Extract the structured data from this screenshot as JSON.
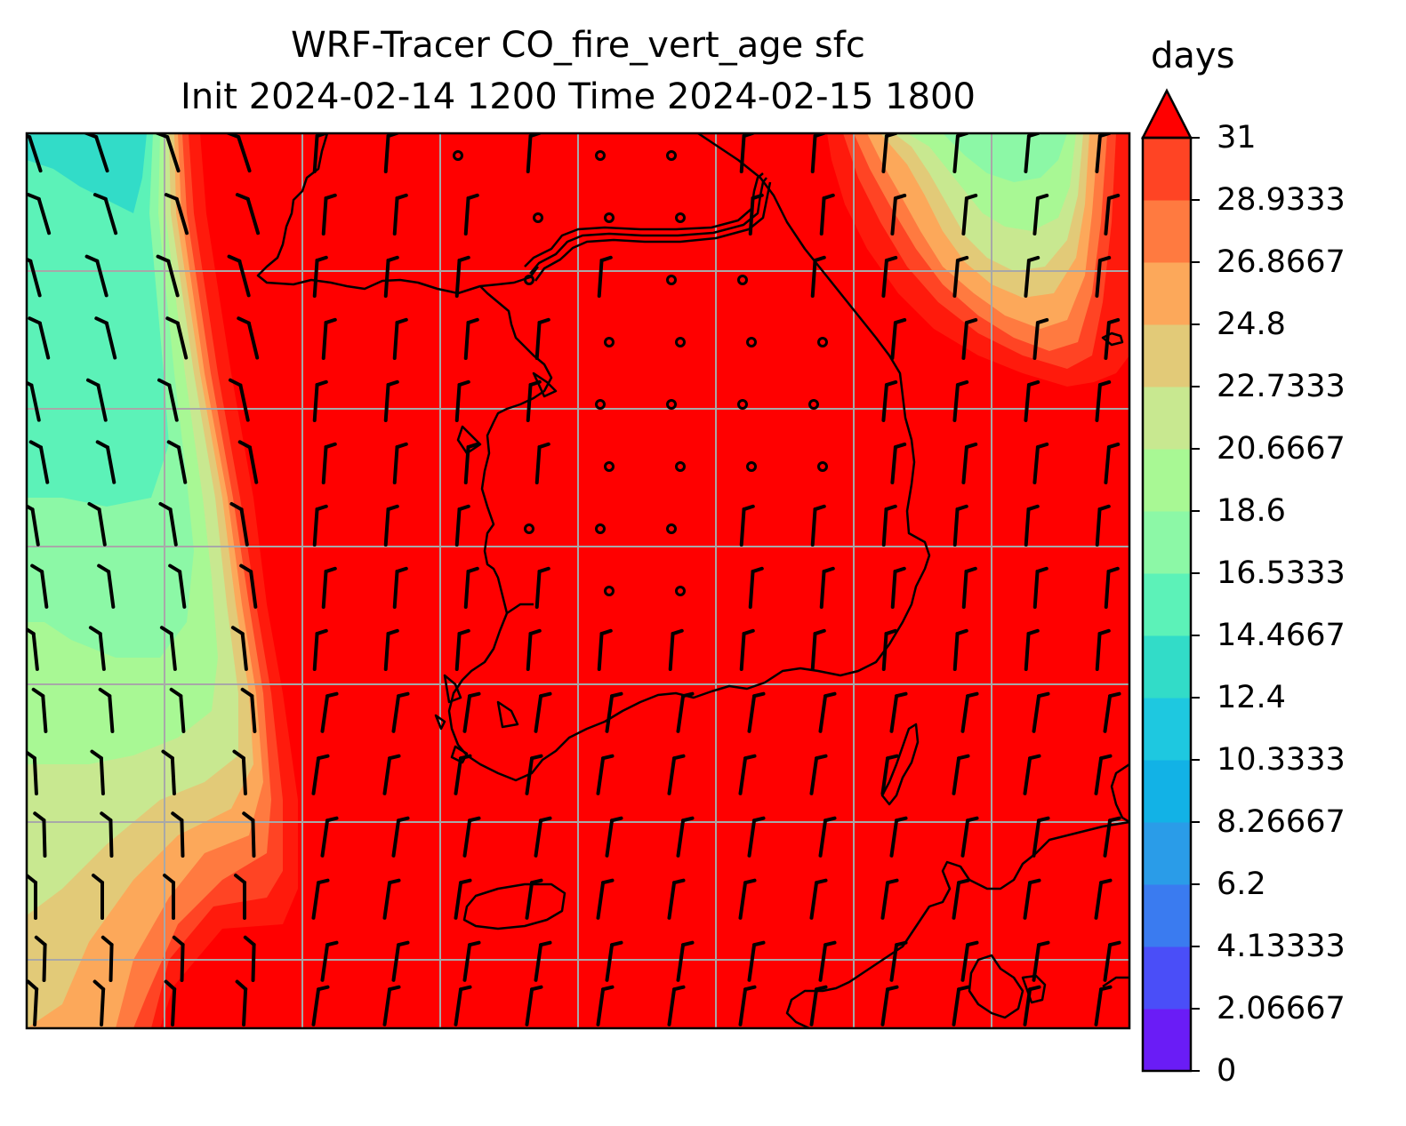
{
  "figure": {
    "title_line1": "WRF-Tracer CO_fire_vert_age sfc",
    "title_line2": "Init 2024-02-14 1200 Time 2024-02-15 1800"
  },
  "colorbar": {
    "units": "days",
    "extend": "max",
    "tick_labels": [
      "0",
      "2.06667",
      "4.13333",
      "6.2",
      "8.26667",
      "10.3333",
      "12.4",
      "14.4667",
      "16.5333",
      "18.6",
      "20.6667",
      "22.7333",
      "24.8",
      "26.8667",
      "28.9333",
      "31"
    ],
    "colors": [
      "#6a1cf6",
      "#4a4ef8",
      "#3a7bf0",
      "#2a9ce8",
      "#12b2e6",
      "#1ec8e0",
      "#32dcc8",
      "#5cf2b8",
      "#8cf8a6",
      "#a8f894",
      "#c8e890",
      "#e2ca78",
      "#fca85a",
      "#ff7a40",
      "#ff4424",
      "#ff1a0c"
    ],
    "extend_color": "#ff0000"
  },
  "map": {
    "field_name": "CO_fire_vert_age",
    "level": "sfc",
    "background_color": "#ff0000",
    "gridline_color": "#a8a8a8",
    "coastline_color": "#000000",
    "wind_barb_color": "#000000"
  }
}
